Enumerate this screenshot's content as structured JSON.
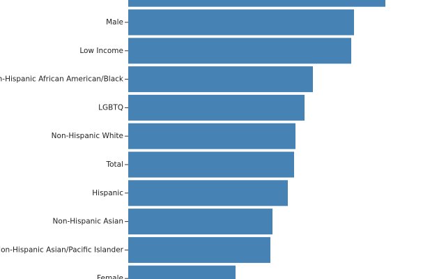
{
  "chart_data": {
    "type": "hbar",
    "categories": [
      null,
      "Male",
      "Low Income",
      "Non-Hispanic African American/Black",
      "LGBTQ",
      "Non-Hispanic White",
      "Total",
      "Hispanic",
      "Non-Hispanic Asian",
      "Non-Hispanic Asian/Pacific Islander",
      "Female"
    ],
    "values": [
      369,
      324,
      320,
      265,
      253,
      240,
      238,
      229,
      207,
      204,
      154
    ],
    "color": "#4682b4",
    "xlim": [
      0,
      456
    ]
  }
}
